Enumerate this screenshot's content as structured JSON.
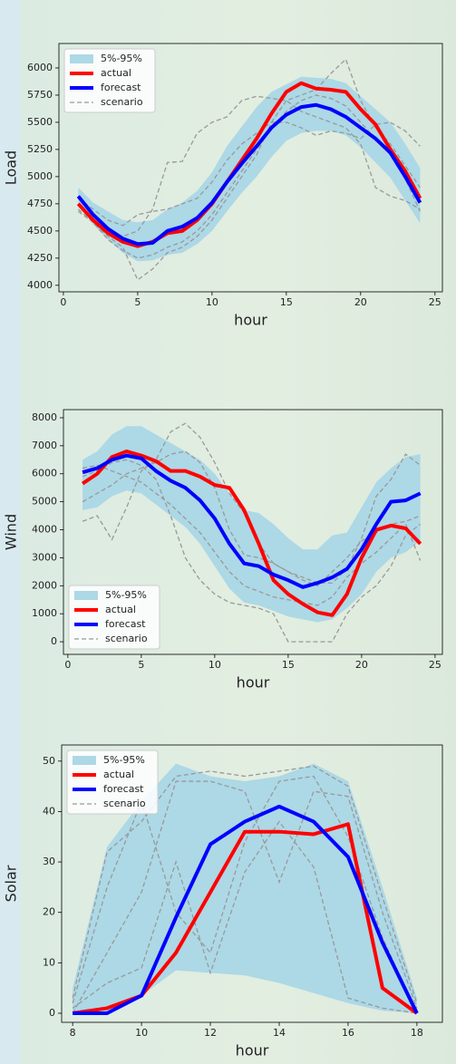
{
  "chart_data": [
    {
      "type": "line",
      "xlabel": "hour",
      "ylabel": "Load",
      "legend": "upper left",
      "x": [
        1,
        2,
        3,
        4,
        5,
        6,
        7,
        8,
        9,
        10,
        11,
        12,
        13,
        14,
        15,
        16,
        17,
        18,
        19,
        20,
        21,
        22,
        23,
        24
      ],
      "xlim": [
        -0.3,
        25.5
      ],
      "ylim": [
        3940,
        6225
      ],
      "xticks": [
        0,
        5,
        10,
        15,
        20,
        25
      ],
      "yticks": [
        4000,
        4250,
        4500,
        4750,
        5000,
        5250,
        5500,
        5750,
        6000
      ],
      "band": {
        "name": "5%-95%",
        "color": "#add8e6",
        "lower": [
          4750,
          4560,
          4420,
          4300,
          4220,
          4230,
          4280,
          4300,
          4380,
          4500,
          4680,
          4850,
          5000,
          5180,
          5330,
          5400,
          5420,
          5420,
          5380,
          5270,
          5130,
          4990,
          4780,
          4570
        ],
        "upper": [
          4900,
          4760,
          4680,
          4600,
          4580,
          4600,
          4700,
          4760,
          4870,
          5040,
          5280,
          5460,
          5640,
          5780,
          5850,
          5920,
          5910,
          5900,
          5860,
          5740,
          5620,
          5500,
          5300,
          5080
        ]
      },
      "scenarios": {
        "name": "scenario",
        "color": "#999999",
        "values": [
          [
            4680,
            4580,
            4450,
            4350,
            4050,
            4150,
            4300,
            4350,
            4450,
            4600,
            4800,
            5000,
            5200,
            5500,
            5700,
            5750,
            5800,
            5950,
            6080,
            5700,
            5450,
            5300,
            5100,
            4900
          ],
          [
            4750,
            4600,
            4500,
            4450,
            4500,
            4700,
            5130,
            5140,
            5400,
            5500,
            5550,
            5700,
            5740,
            5720,
            5700,
            5600,
            5550,
            5500,
            5450,
            5300,
            4900,
            4820,
            4780,
            4700
          ],
          [
            4800,
            4700,
            4600,
            4550,
            4650,
            4680,
            4700,
            4750,
            4800,
            4950,
            5150,
            5300,
            5400,
            5500,
            5500,
            5450,
            5380,
            5420,
            5400,
            5350,
            5480,
            5500,
            5420,
            5280
          ],
          [
            4700,
            4580,
            4420,
            4320,
            4250,
            4280,
            4350,
            4400,
            4500,
            4650,
            4850,
            5050,
            5250,
            5450,
            5600,
            5700,
            5750,
            5720,
            5650,
            5500,
            5350,
            5200,
            4980,
            4680
          ]
        ]
      },
      "series": [
        {
          "name": "actual",
          "color": "#ff0000",
          "values": [
            4750,
            4600,
            4480,
            4400,
            4360,
            4400,
            4480,
            4500,
            4600,
            4750,
            4950,
            5150,
            5350,
            5580,
            5780,
            5860,
            5810,
            5800,
            5780,
            5620,
            5480,
            5250,
            5050,
            4800
          ]
        },
        {
          "name": "forecast",
          "color": "#0000ff",
          "values": [
            4820,
            4650,
            4520,
            4430,
            4380,
            4390,
            4500,
            4540,
            4620,
            4760,
            4950,
            5120,
            5280,
            5450,
            5570,
            5640,
            5660,
            5620,
            5550,
            5450,
            5350,
            5220,
            5000,
            4760
          ]
        }
      ]
    },
    {
      "type": "line",
      "xlabel": "hour",
      "ylabel": "Wind",
      "legend": "lower left",
      "x": [
        1,
        2,
        3,
        4,
        5,
        6,
        7,
        8,
        9,
        10,
        11,
        12,
        13,
        14,
        15,
        16,
        17,
        18,
        19,
        20,
        21,
        22,
        23,
        24
      ],
      "xlim": [
        -0.3,
        25.5
      ],
      "ylim": [
        -450,
        8290
      ],
      "xticks": [
        0,
        5,
        10,
        15,
        20,
        25
      ],
      "yticks": [
        0,
        1000,
        2000,
        3000,
        4000,
        5000,
        6000,
        7000,
        8000
      ],
      "band": {
        "name": "5%-95%",
        "color": "#add8e6",
        "lower": [
          4700,
          4800,
          5200,
          5400,
          5300,
          4900,
          4500,
          4100,
          3500,
          2700,
          1900,
          1400,
          1300,
          1100,
          900,
          800,
          700,
          800,
          1200,
          1700,
          2500,
          3000,
          3200,
          3600
        ],
        "upper": [
          6500,
          6800,
          7400,
          7700,
          7700,
          7400,
          7100,
          6800,
          6500,
          6000,
          5300,
          4700,
          4600,
          4200,
          3700,
          3300,
          3300,
          3800,
          3900,
          4800,
          5700,
          6200,
          6600,
          6700
        ]
      },
      "scenarios": {
        "name": "scenario",
        "color": "#999999",
        "values": [
          [
            4300,
            4500,
            3650,
            4800,
            6100,
            6500,
            7500,
            7800,
            7300,
            6400,
            5300,
            4600,
            3500,
            2800,
            2500,
            2200,
            2000,
            2500,
            3000,
            3600,
            3900,
            4200,
            4300,
            4500
          ],
          [
            5900,
            6100,
            6400,
            6500,
            6300,
            5800,
            4500,
            3000,
            2200,
            1700,
            1400,
            1300,
            1200,
            1000,
            0,
            0,
            0,
            0,
            1000,
            1600,
            2000,
            2700,
            3800,
            4200
          ],
          [
            5000,
            5300,
            5600,
            6000,
            6200,
            6400,
            6700,
            6800,
            6400,
            5500,
            4000,
            3100,
            3000,
            2800,
            2500,
            2300,
            2100,
            2100,
            2600,
            3700,
            5200,
            5800,
            6700,
            6300
          ],
          [
            6200,
            6300,
            6100,
            5900,
            5700,
            5300,
            4900,
            4400,
            3900,
            3200,
            2500,
            2000,
            1800,
            1600,
            1500,
            1400,
            1300,
            1600,
            2300,
            2800,
            3200,
            3700,
            4200,
            2900
          ]
        ]
      },
      "series": [
        {
          "name": "actual",
          "color": "#ff0000",
          "values": [
            5650,
            6000,
            6600,
            6800,
            6650,
            6450,
            6100,
            6100,
            5900,
            5600,
            5500,
            4700,
            3500,
            2200,
            1700,
            1350,
            1050,
            950,
            1700,
            3000,
            4000,
            4150,
            4050,
            3500
          ]
        },
        {
          "name": "forecast",
          "color": "#0000ff",
          "values": [
            6050,
            6200,
            6500,
            6650,
            6550,
            6100,
            5750,
            5500,
            5050,
            4400,
            3500,
            2800,
            2700,
            2400,
            2200,
            1950,
            2100,
            2300,
            2600,
            3300,
            4200,
            5000,
            5050,
            5300
          ]
        }
      ]
    },
    {
      "type": "line",
      "xlabel": "hour",
      "ylabel": "Solar",
      "legend": "upper left",
      "x": [
        8,
        9,
        10,
        11,
        12,
        13,
        14,
        15,
        16,
        17,
        18
      ],
      "xlim": [
        7.68,
        18.74
      ],
      "ylim": [
        -1.8,
        53.2
      ],
      "xticks": [
        8,
        10,
        12,
        14,
        16,
        18
      ],
      "yticks": [
        0,
        10,
        20,
        30,
        40,
        50
      ],
      "band": {
        "name": "5%-95%",
        "color": "#add8e6",
        "lower": [
          0,
          0,
          3.5,
          8.5,
          8,
          7.5,
          6,
          4,
          2,
          0.5,
          0
        ],
        "upper": [
          5,
          33,
          42,
          49.5,
          47,
          46,
          47,
          49.5,
          46,
          25,
          3
        ]
      },
      "scenarios": {
        "name": "scenario",
        "color": "#999999",
        "values": [
          [
            3,
            32,
            38,
            47,
            48,
            47,
            48,
            49,
            45,
            23,
            2
          ],
          [
            1,
            6,
            9,
            30,
            8,
            28,
            38,
            29,
            3,
            1,
            0
          ],
          [
            0,
            12,
            24,
            46,
            46,
            44,
            26,
            44,
            43,
            20,
            1
          ],
          [
            2,
            25,
            42,
            20,
            12,
            34,
            46,
            47,
            35,
            15,
            0
          ]
        ]
      },
      "series": [
        {
          "name": "actual",
          "color": "#ff0000",
          "values": [
            0,
            1,
            3.5,
            12,
            24,
            36,
            36,
            35.5,
            37.5,
            5,
            0
          ]
        },
        {
          "name": "forecast",
          "color": "#0000ff",
          "values": [
            0,
            0,
            3.5,
            19,
            33.5,
            38,
            41,
            38,
            31,
            14,
            0
          ]
        }
      ]
    }
  ]
}
